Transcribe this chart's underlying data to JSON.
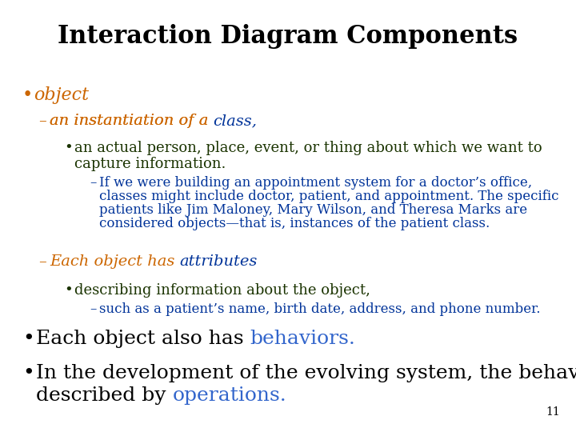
{
  "title": "Interaction Diagram Components",
  "bg_color": "#ffffff",
  "title_color": "#000000",
  "title_fontsize": 22,
  "slide_number": "11",
  "orange": "#cc6600",
  "blue": "#003399",
  "dark_green": "#1a3300",
  "black": "#000000",
  "light_blue": "#3366cc",
  "fig_width": 7.2,
  "fig_height": 5.4,
  "dpi": 100
}
